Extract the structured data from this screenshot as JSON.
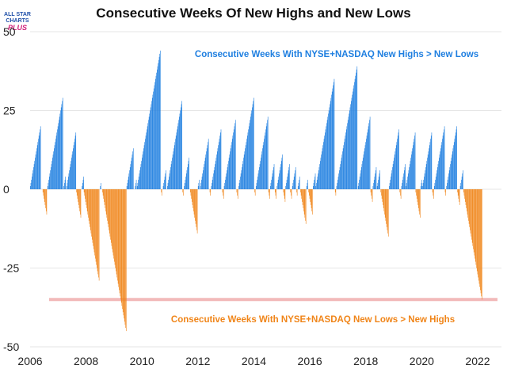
{
  "logo": {
    "line1": "ALL STAR",
    "line2": "CHARTS",
    "line3": "PLUS"
  },
  "colors": {
    "positive": "#1f7fe0",
    "negative": "#f08519",
    "highlight": "#f2b9b9",
    "grid": "#e6e6e6"
  },
  "chart_data": {
    "type": "bar",
    "title": "Consecutive Weeks Of New Highs and New Lows",
    "xlabel": "",
    "ylabel": "",
    "xlim": [
      2006.0,
      2022.85
    ],
    "ylim": [
      -50,
      50
    ],
    "x_ticks": [
      "2006",
      "2008",
      "2010",
      "2012",
      "2014",
      "2016",
      "2018",
      "2020",
      "2022"
    ],
    "y_ticks": [
      "50",
      "25",
      "0",
      "-25",
      "-50"
    ],
    "grid": "horizontal",
    "streaks": [
      {
        "start": 2006.0,
        "weeks": 20
      },
      {
        "start": 2006.45,
        "weeks": -8
      },
      {
        "start": 2006.62,
        "weeks": 29
      },
      {
        "start": 2007.2,
        "weeks": 4
      },
      {
        "start": 2007.3,
        "weeks": 18
      },
      {
        "start": 2007.65,
        "weeks": -9
      },
      {
        "start": 2007.85,
        "weeks": 4
      },
      {
        "start": 2007.92,
        "weeks": -29
      },
      {
        "start": 2008.5,
        "weeks": 2
      },
      {
        "start": 2008.58,
        "weeks": -45
      },
      {
        "start": 2009.45,
        "weeks": 13
      },
      {
        "start": 2009.75,
        "weeks": 3
      },
      {
        "start": 2009.82,
        "weeks": 44
      },
      {
        "start": 2010.68,
        "weeks": -2
      },
      {
        "start": 2010.75,
        "weeks": 6
      },
      {
        "start": 2010.9,
        "weeks": 28
      },
      {
        "start": 2011.45,
        "weeks": -2
      },
      {
        "start": 2011.5,
        "weeks": 10
      },
      {
        "start": 2011.72,
        "weeks": -14
      },
      {
        "start": 2012.0,
        "weeks": 3
      },
      {
        "start": 2012.08,
        "weeks": 16
      },
      {
        "start": 2012.42,
        "weeks": -2
      },
      {
        "start": 2012.47,
        "weeks": 19
      },
      {
        "start": 2012.87,
        "weeks": -3
      },
      {
        "start": 2012.93,
        "weeks": 22
      },
      {
        "start": 2013.38,
        "weeks": -3
      },
      {
        "start": 2013.45,
        "weeks": 29
      },
      {
        "start": 2014.02,
        "weeks": -2
      },
      {
        "start": 2014.07,
        "weeks": 23
      },
      {
        "start": 2014.52,
        "weeks": -3
      },
      {
        "start": 2014.58,
        "weeks": 8
      },
      {
        "start": 2014.75,
        "weeks": -3
      },
      {
        "start": 2014.82,
        "weeks": 11
      },
      {
        "start": 2015.05,
        "weeks": -4
      },
      {
        "start": 2015.13,
        "weeks": 8
      },
      {
        "start": 2015.3,
        "weeks": -3
      },
      {
        "start": 2015.37,
        "weeks": 7
      },
      {
        "start": 2015.52,
        "weeks": -2
      },
      {
        "start": 2015.57,
        "weeks": 4
      },
      {
        "start": 2015.66,
        "weeks": -11
      },
      {
        "start": 2015.88,
        "weeks": 3
      },
      {
        "start": 2015.95,
        "weeks": -8
      },
      {
        "start": 2016.11,
        "weeks": 5
      },
      {
        "start": 2016.21,
        "weeks": 35
      },
      {
        "start": 2016.9,
        "weeks": -2
      },
      {
        "start": 2016.95,
        "weeks": 39
      },
      {
        "start": 2017.72,
        "weeks": 23
      },
      {
        "start": 2018.17,
        "weeks": -4
      },
      {
        "start": 2018.25,
        "weeks": 7
      },
      {
        "start": 2018.4,
        "weeks": 6
      },
      {
        "start": 2018.53,
        "weeks": -15
      },
      {
        "start": 2018.83,
        "weeks": 19
      },
      {
        "start": 2019.21,
        "weeks": -3
      },
      {
        "start": 2019.27,
        "weeks": 8
      },
      {
        "start": 2019.43,
        "weeks": 18
      },
      {
        "start": 2019.78,
        "weeks": -9
      },
      {
        "start": 2019.96,
        "weeks": 3
      },
      {
        "start": 2020.02,
        "weeks": 18
      },
      {
        "start": 2020.38,
        "weeks": -3
      },
      {
        "start": 2020.44,
        "weeks": 20
      },
      {
        "start": 2020.83,
        "weeks": -2
      },
      {
        "start": 2020.88,
        "weeks": 20
      },
      {
        "start": 2021.27,
        "weeks": -5
      },
      {
        "start": 2021.37,
        "weeks": 6
      },
      {
        "start": 2021.49,
        "weeks": -35
      }
    ],
    "reference_line": -35,
    "annotations": [
      {
        "text": "Consecutive Weeks With NYSE+NASDAQ New Highs > New Lows",
        "color": "#1f7fe0"
      },
      {
        "text": "Consecutive Weeks With NYSE+NASDAQ New Lows > New Highs",
        "color": "#f08519"
      }
    ]
  }
}
